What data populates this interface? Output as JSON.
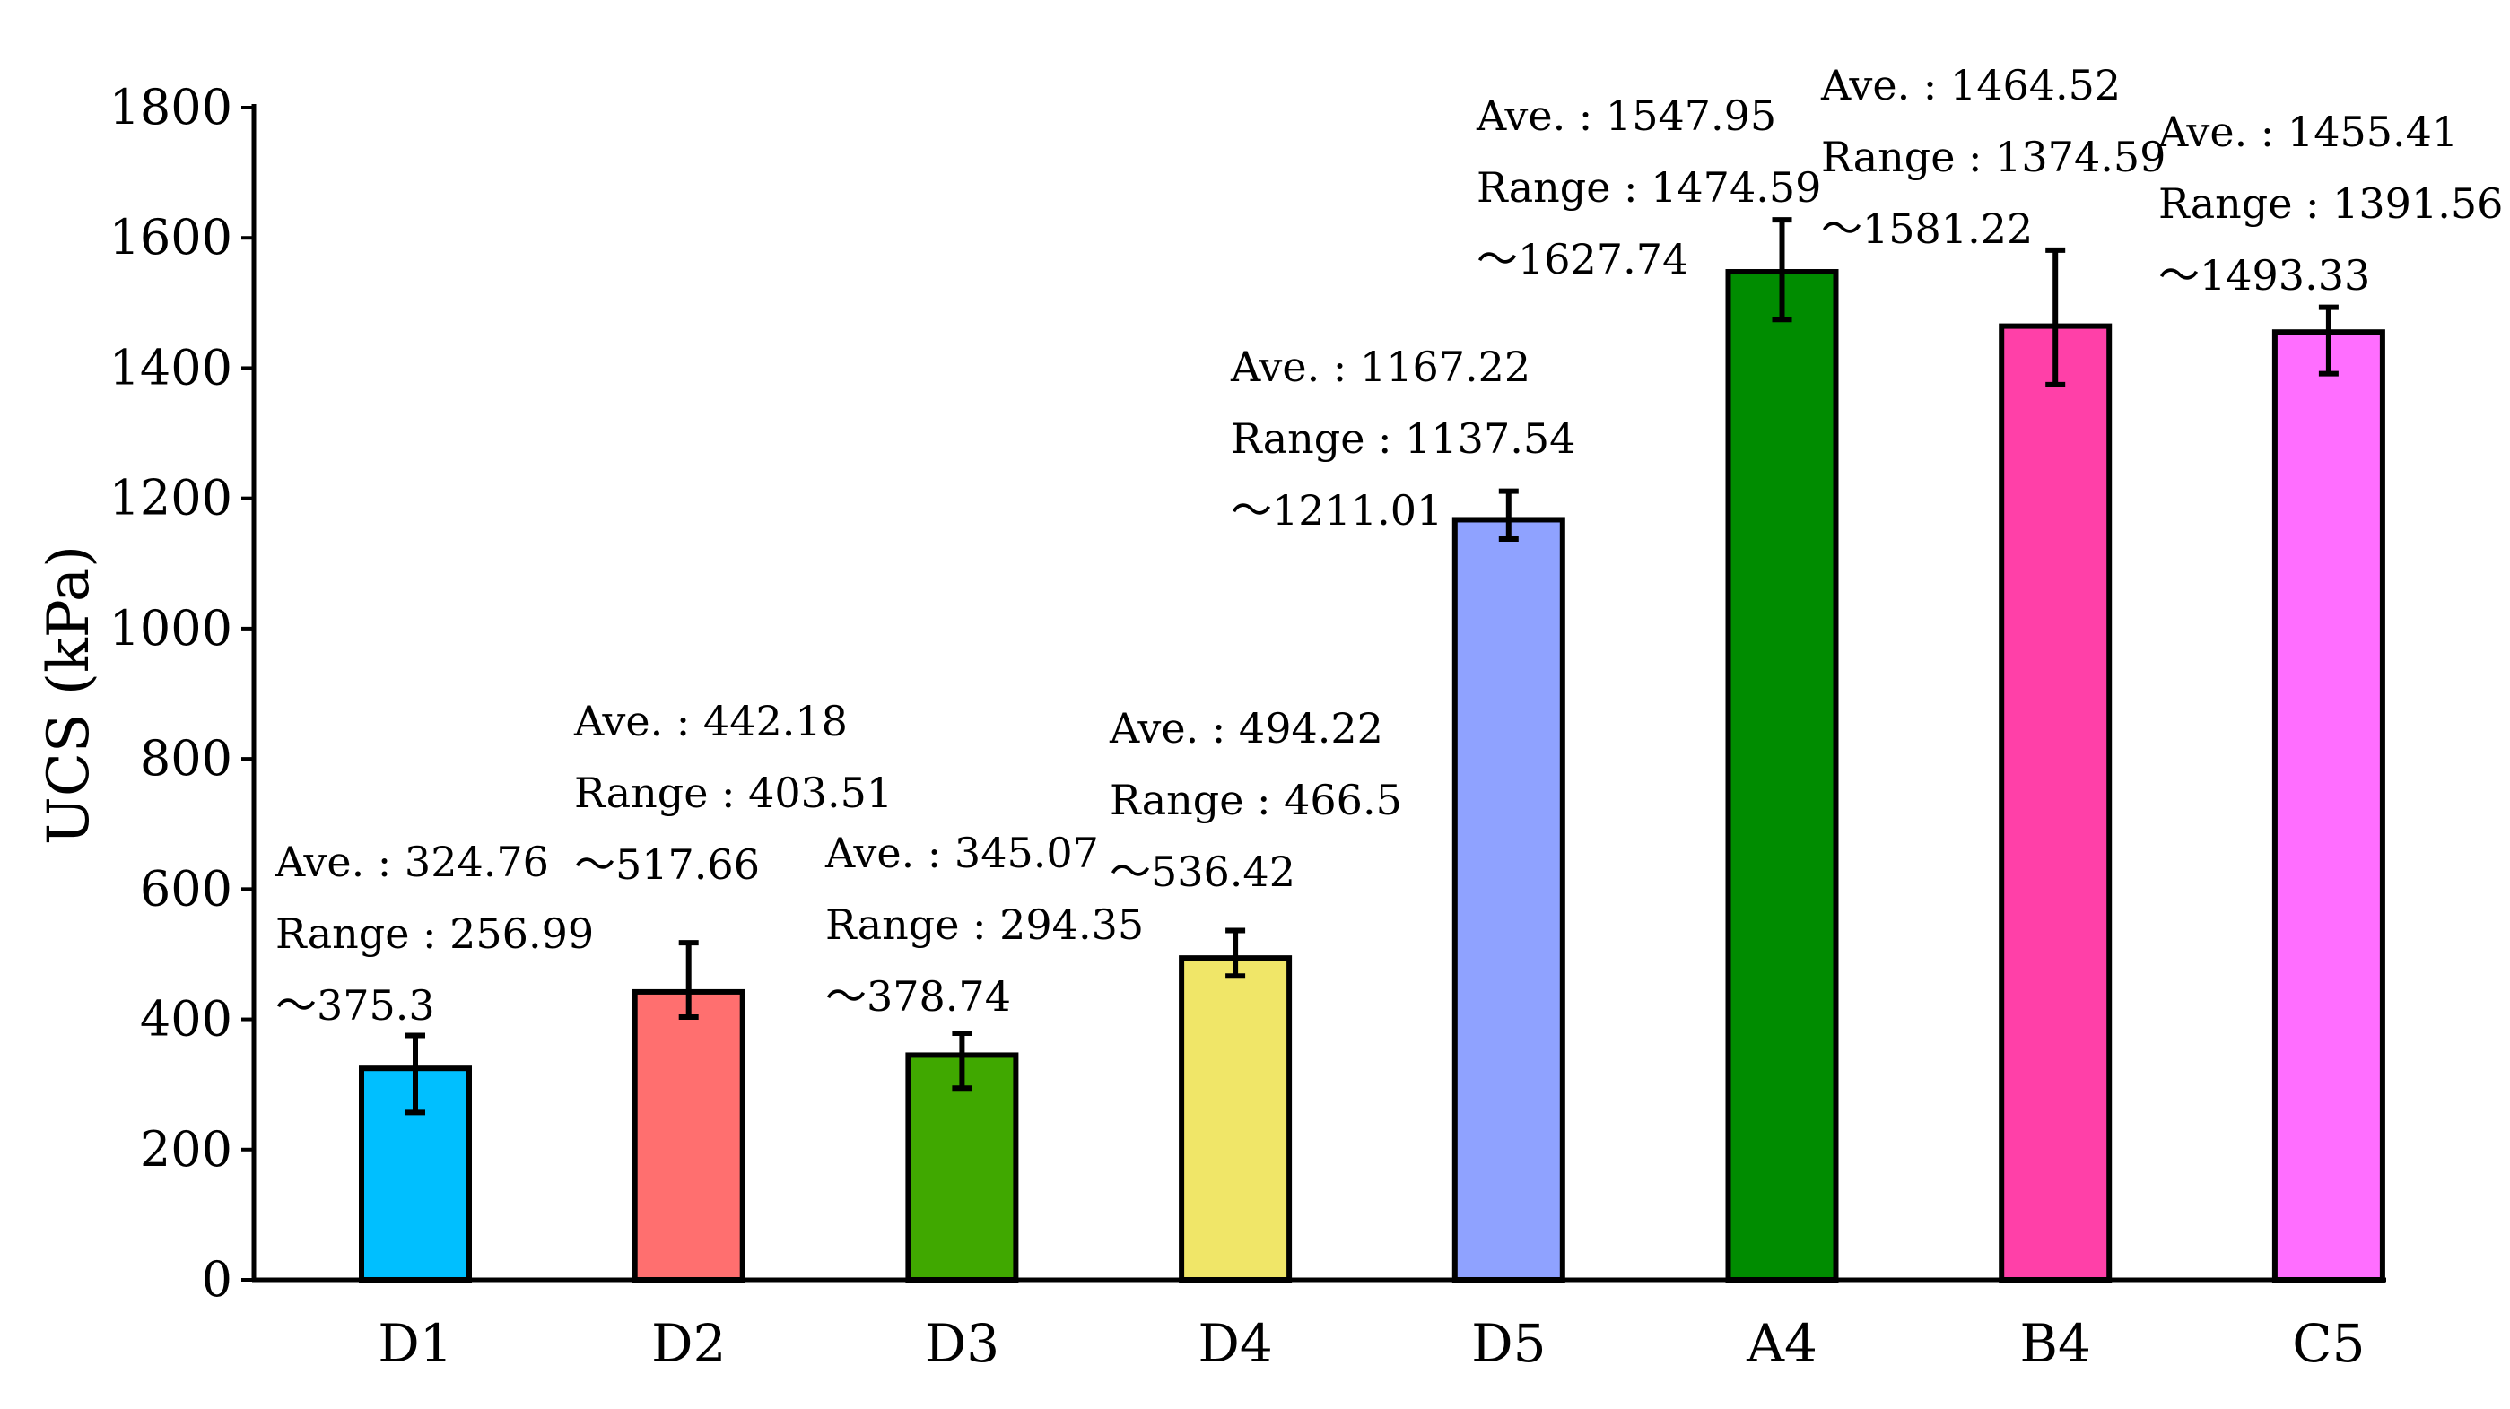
{
  "chart_data": {
    "type": "bar",
    "title": "",
    "xlabel": "",
    "ylabel": "UCS (kPa)",
    "ylim": [
      0,
      1800
    ],
    "yticks": [
      0,
      200,
      400,
      600,
      800,
      1000,
      1200,
      1400,
      1600,
      1800
    ],
    "grid": false,
    "legend": "none",
    "categories": [
      "D1",
      "D2",
      "D3",
      "D4",
      "D5",
      "A4",
      "B4",
      "C5"
    ],
    "values": [
      324.76,
      442.18,
      345.07,
      494.22,
      1167.22,
      1547.95,
      1464.52,
      1455.41
    ],
    "range_low": [
      256.99,
      403.51,
      294.35,
      466.5,
      1137.54,
      1474.59,
      1374.59,
      1391.56
    ],
    "range_high": [
      375.3,
      517.66,
      378.74,
      536.42,
      1211.01,
      1627.74,
      1581.22,
      1493.33
    ],
    "colors": [
      "#00BFFF",
      "#FF6F6F",
      "#40A800",
      "#F0E668",
      "#8FA2FF",
      "#008C00",
      "#FF40A8",
      "#FF6EFF"
    ],
    "annotations": [
      {
        "category": "D1",
        "lines": [
          "Ave. : 324.76",
          "Range : 256.99",
          "～375.3"
        ]
      },
      {
        "category": "D2",
        "lines": [
          "Ave. : 442.18",
          "Range : 403.51",
          "～517.66"
        ]
      },
      {
        "category": "D3",
        "lines": [
          "Ave. : 345.07",
          "Range : 294.35",
          "～378.74"
        ]
      },
      {
        "category": "D4",
        "lines": [
          "Ave. : 494.22",
          "Range : 466.5",
          "～536.42"
        ]
      },
      {
        "category": "D5",
        "lines": [
          "Ave. : 1167.22",
          "Range : 1137.54",
          "～1211.01"
        ]
      },
      {
        "category": "A4",
        "lines": [
          "Ave. : 1547.95",
          "Range : 1474.59",
          "～1627.74"
        ]
      },
      {
        "category": "B4",
        "lines": [
          "Ave. : 1464.52",
          "Range : 1374.59",
          "～1581.22"
        ]
      },
      {
        "category": "C5",
        "lines": [
          "Ave. : 1455.41",
          "Range : 1391.56",
          "～1493.33"
        ]
      }
    ]
  }
}
